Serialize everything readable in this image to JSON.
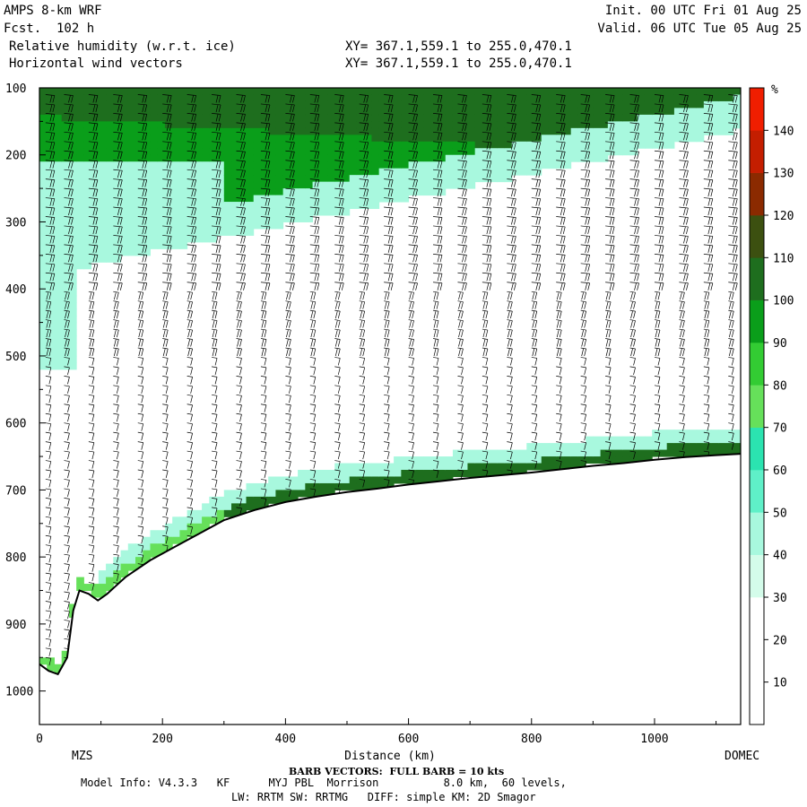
{
  "header": {
    "model": "AMPS 8-km WRF",
    "fcst": "Fcst.  102 h",
    "field1": "Relative humidity (w.r.t. ice)",
    "field2": "Horizontal wind vectors",
    "init": "Init. 00 UTC Fri 01 Aug 25",
    "valid": "Valid. 06 UTC Tue 05 Aug 25",
    "xy1": "XY= 367.1,559.1 to 255.0,470.1",
    "xy2": "XY= 367.1,559.1 to 255.0,470.1"
  },
  "footer": {
    "left_station": "MZS",
    "right_station": "DOMEC",
    "barb_note": "BARB VECTORS:  FULL BARB = 10 kts",
    "model_info": "Model Info: V4.3.3   KF      MYJ PBL  Morrison          8.0 km,  60 levels,",
    "model_info2": "LW: RRTM SW: RRTMG   DIFF: simple KM: 2D Smagor"
  },
  "chart_data": {
    "type": "heatmap",
    "title": "Relative humidity (w.r.t. ice)",
    "xlabel": "Distance (km)",
    "ylabel": "",
    "x_ticks": [
      0,
      200,
      400,
      600,
      800,
      1000
    ],
    "y_ticks": [
      100,
      200,
      300,
      400,
      500,
      600,
      700,
      800,
      900,
      1000
    ],
    "xlim": [
      0,
      1140
    ],
    "ylim": [
      1050,
      100
    ],
    "colorbar": {
      "unit": "%",
      "levels": [
        10,
        20,
        30,
        40,
        50,
        60,
        70,
        80,
        90,
        100,
        110,
        120,
        130,
        140
      ],
      "colors": [
        "#ffffff",
        "#ffffff",
        "#ffffff",
        "#d4fcea",
        "#a8f8de",
        "#5ff0c8",
        "#2be3b0",
        "#66e05a",
        "#33cc33",
        "#0a9e1a",
        "#1e6e1e",
        "#3c5010",
        "#8b2a00",
        "#c41e00",
        "#f01e00"
      ]
    },
    "terrain": [
      [
        0,
        960
      ],
      [
        15,
        970
      ],
      [
        30,
        975
      ],
      [
        45,
        950
      ],
      [
        55,
        880
      ],
      [
        65,
        850
      ],
      [
        80,
        855
      ],
      [
        95,
        865
      ],
      [
        110,
        855
      ],
      [
        140,
        830
      ],
      [
        180,
        805
      ],
      [
        220,
        785
      ],
      [
        260,
        765
      ],
      [
        300,
        745
      ],
      [
        350,
        730
      ],
      [
        400,
        718
      ],
      [
        450,
        710
      ],
      [
        500,
        703
      ],
      [
        550,
        698
      ],
      [
        600,
        692
      ],
      [
        650,
        687
      ],
      [
        700,
        682
      ],
      [
        750,
        678
      ],
      [
        800,
        674
      ],
      [
        850,
        669
      ],
      [
        900,
        664
      ],
      [
        950,
        660
      ],
      [
        1000,
        655
      ],
      [
        1050,
        651
      ],
      [
        1100,
        648
      ],
      [
        1140,
        646
      ]
    ],
    "barb_columns_km": [
      10,
      40,
      80,
      120,
      160,
      200,
      240,
      280,
      320,
      360,
      400,
      440,
      480,
      520,
      560,
      600,
      640,
      680,
      720,
      760,
      800,
      840,
      880,
      920,
      960,
      1000,
      1040,
      1080,
      1120
    ]
  }
}
